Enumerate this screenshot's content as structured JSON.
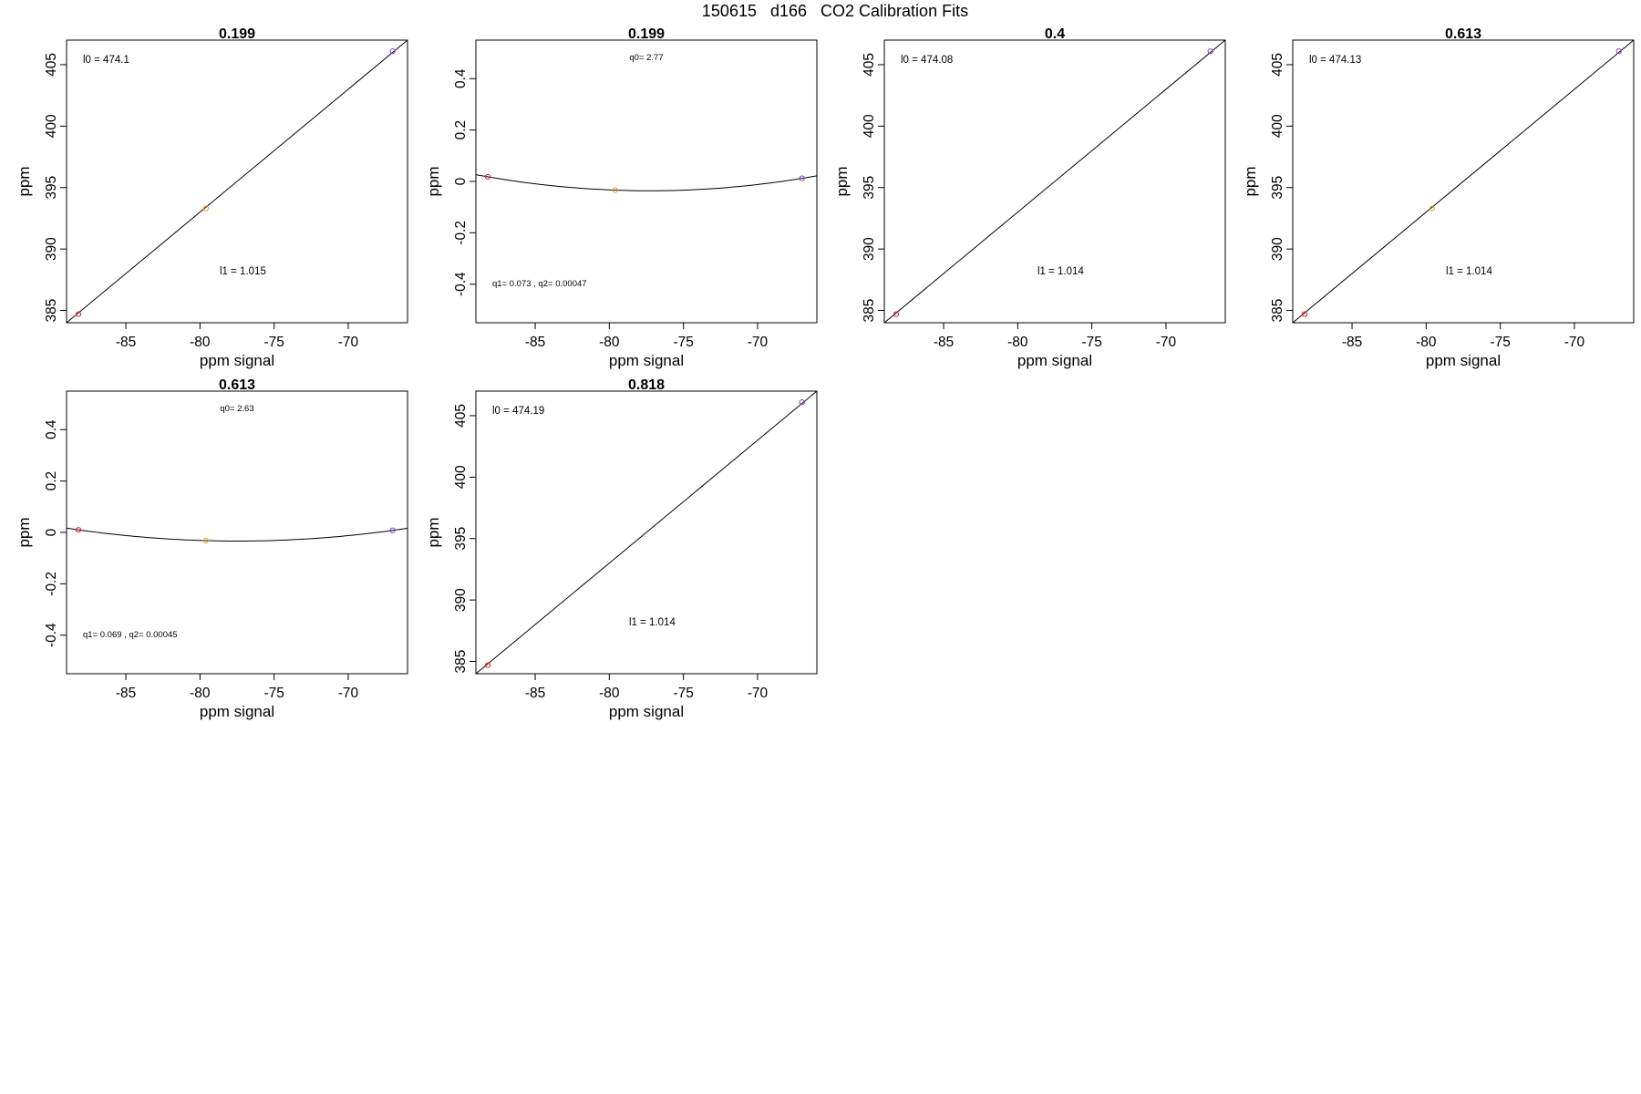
{
  "suptitle": "150615   d166   CO2 Calibration Fits",
  "colors": {
    "axis": "#000000",
    "fit_line": "#000000",
    "point_low": "#dd2222",
    "point_mid": "#e8a030",
    "point_high": "#8a3fd1"
  },
  "chart_data": [
    {
      "type": "scatter",
      "fit": "linear",
      "title": "0.199",
      "xlabel": "ppm signal",
      "ylabel": "ppm",
      "xlim": [
        -89,
        -66
      ],
      "ylim": [
        384,
        407
      ],
      "xticks": [
        -85,
        -80,
        -75,
        -70
      ],
      "yticks": [
        385,
        390,
        395,
        400,
        405
      ],
      "x": [
        -88.2,
        -79.6,
        -67.0
      ],
      "y": [
        384.7,
        393.3,
        406.1
      ],
      "annotations": {
        "top": "l0 =  474.1",
        "bottom": "l1 =  1.015"
      }
    },
    {
      "type": "scatter",
      "fit": "quadratic",
      "title": "0.199",
      "xlabel": "ppm signal",
      "ylabel": "ppm",
      "xlim": [
        -89,
        -66
      ],
      "ylim": [
        -0.55,
        0.55
      ],
      "xticks": [
        -85,
        -80,
        -75,
        -70
      ],
      "yticks": [
        -0.4,
        -0.2,
        0.0,
        0.2,
        0.4
      ],
      "x": [
        -88.2,
        -79.6,
        -67.0
      ],
      "y": [
        0.018,
        -0.034,
        0.012
      ],
      "coef": {
        "q0": 2.77,
        "q1": 0.073,
        "q2": 0.00047
      },
      "annotations": {
        "top": "q0= 2.77",
        "bottom": "q1= 0.073 , q2= 0.00047"
      }
    },
    {
      "type": "scatter",
      "fit": "linear",
      "title": "0.4",
      "xlabel": "ppm signal",
      "ylabel": "ppm",
      "xlim": [
        -89,
        -66
      ],
      "ylim": [
        384,
        407
      ],
      "xticks": [
        -85,
        -80,
        -75,
        -70
      ],
      "yticks": [
        385,
        390,
        395,
        400,
        405
      ],
      "x": [
        -88.2,
        -67.0
      ],
      "y": [
        384.7,
        406.1
      ],
      "annotations": {
        "top": "l0 =  474.08",
        "bottom": "l1 =  1.014"
      }
    },
    {
      "type": "scatter",
      "fit": "linear",
      "title": "0.613",
      "xlabel": "ppm signal",
      "ylabel": "ppm",
      "xlim": [
        -89,
        -66
      ],
      "ylim": [
        384,
        407
      ],
      "xticks": [
        -85,
        -80,
        -75,
        -70
      ],
      "yticks": [
        385,
        390,
        395,
        400,
        405
      ],
      "x": [
        -88.2,
        -79.6,
        -67.0
      ],
      "y": [
        384.7,
        393.3,
        406.1
      ],
      "annotations": {
        "top": "l0 =  474.13",
        "bottom": "l1 =  1.014"
      }
    },
    {
      "type": "scatter",
      "fit": "quadratic",
      "title": "0.613",
      "xlabel": "ppm signal",
      "ylabel": "ppm",
      "xlim": [
        -89,
        -66
      ],
      "ylim": [
        -0.55,
        0.55
      ],
      "xticks": [
        -85,
        -80,
        -75,
        -70
      ],
      "yticks": [
        -0.4,
        -0.2,
        0.0,
        0.2,
        0.4
      ],
      "x": [
        -88.2,
        -79.6,
        -67.0
      ],
      "y": [
        0.01,
        -0.032,
        0.008
      ],
      "coef": {
        "q0": 2.63,
        "q1": 0.069,
        "q2": 0.00045
      },
      "annotations": {
        "top": "q0= 2.63",
        "bottom": "q1= 0.069 , q2= 0.00045"
      }
    },
    {
      "type": "scatter",
      "fit": "linear",
      "title": "0.818",
      "xlabel": "ppm signal",
      "ylabel": "ppm",
      "xlim": [
        -89,
        -66
      ],
      "ylim": [
        384,
        407
      ],
      "xticks": [
        -85,
        -80,
        -75,
        -70
      ],
      "yticks": [
        385,
        390,
        395,
        400,
        405
      ],
      "x": [
        -88.2,
        -67.0
      ],
      "y": [
        384.7,
        406.1
      ],
      "annotations": {
        "top": "l0 =  474.19",
        "bottom": "l1 =  1.014"
      }
    }
  ]
}
